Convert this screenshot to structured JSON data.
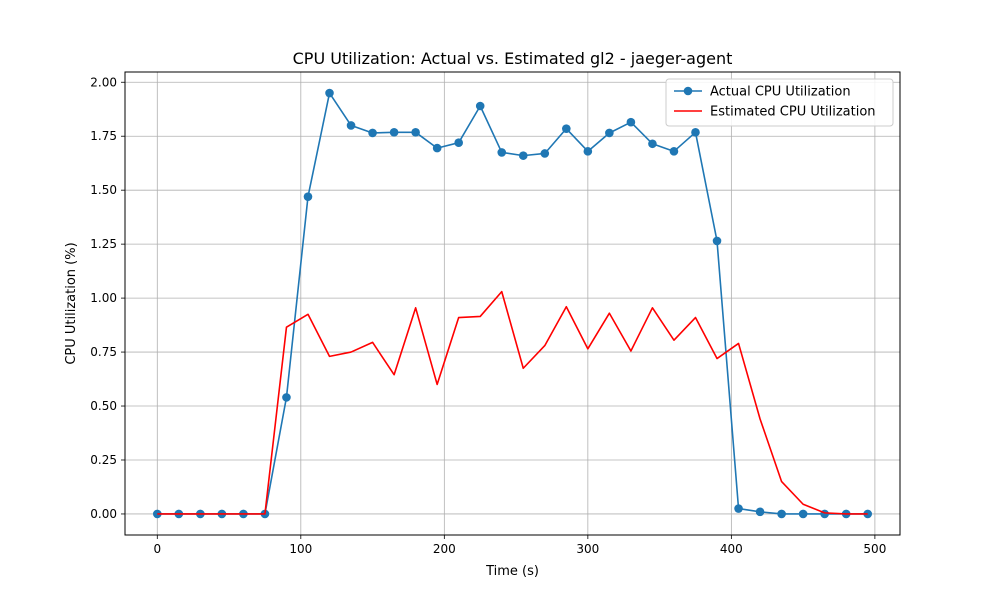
{
  "chart_data": {
    "type": "line",
    "title": "CPU Utilization: Actual vs. Estimated gl2 - jaeger-agent",
    "xlabel": "Time (s)",
    "ylabel": "CPU Utilization (%)",
    "xlim": [
      -22.5,
      517.5
    ],
    "ylim": [
      -0.0975,
      2.0475
    ],
    "xticks": [
      0,
      100,
      200,
      300,
      400,
      500
    ],
    "xtick_labels": [
      "0",
      "100",
      "200",
      "300",
      "400",
      "500"
    ],
    "yticks": [
      0.0,
      0.25,
      0.5,
      0.75,
      1.0,
      1.25,
      1.5,
      1.75,
      2.0
    ],
    "ytick_labels": [
      "0.00",
      "0.25",
      "0.50",
      "0.75",
      "1.00",
      "1.25",
      "1.50",
      "1.75",
      "2.00"
    ],
    "grid": true,
    "legend_position": "top-right",
    "series": [
      {
        "name": "Actual CPU Utilization",
        "color": "#1f77b4",
        "marker": "circle",
        "x": [
          0,
          15,
          30,
          45,
          60,
          75,
          90,
          105,
          120,
          135,
          150,
          165,
          180,
          195,
          210,
          225,
          240,
          255,
          270,
          285,
          300,
          315,
          330,
          345,
          360,
          375,
          390,
          405,
          420,
          435,
          450,
          465,
          480,
          495
        ],
        "y": [
          0.0,
          0.0,
          0.0,
          0.0,
          0.0,
          0.0,
          0.54,
          1.47,
          1.95,
          1.8,
          1.765,
          1.768,
          1.768,
          1.695,
          1.72,
          1.89,
          1.675,
          1.66,
          1.67,
          1.785,
          1.68,
          1.765,
          1.815,
          1.715,
          1.68,
          1.768,
          1.265,
          0.025,
          0.01,
          0.0,
          0.0,
          0.0,
          0.0,
          0.0
        ]
      },
      {
        "name": "Estimated CPU Utilization",
        "color": "#ff0000",
        "marker": "none",
        "x": [
          0,
          15,
          30,
          45,
          60,
          75,
          90,
          105,
          120,
          135,
          150,
          165,
          180,
          195,
          210,
          225,
          240,
          255,
          270,
          285,
          300,
          315,
          330,
          345,
          360,
          375,
          390,
          405,
          420,
          435,
          450,
          465,
          480,
          495
        ],
        "y": [
          0.0,
          0.0,
          0.0,
          0.0,
          0.0,
          0.0,
          0.865,
          0.925,
          0.73,
          0.75,
          0.795,
          0.645,
          0.955,
          0.6,
          0.91,
          0.915,
          1.03,
          0.675,
          0.78,
          0.96,
          0.765,
          0.93,
          0.755,
          0.955,
          0.805,
          0.91,
          0.72,
          0.79,
          0.44,
          0.15,
          0.045,
          0.005,
          0.0,
          0.0
        ]
      }
    ]
  }
}
